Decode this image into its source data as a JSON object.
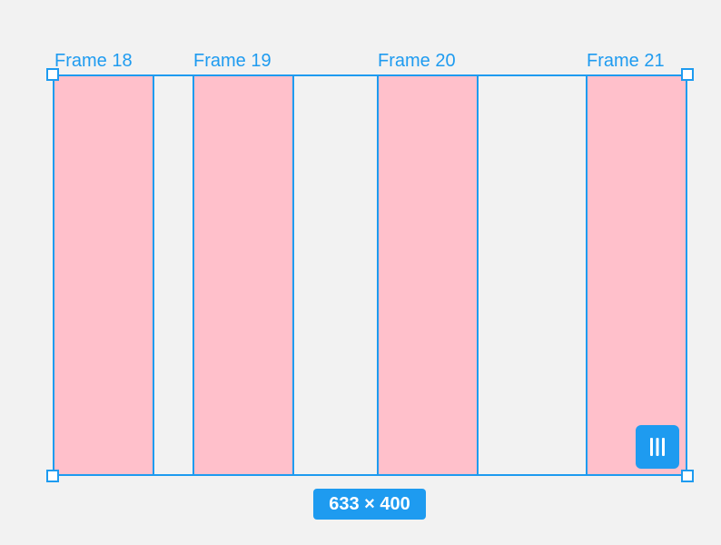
{
  "frames": [
    {
      "label": "Frame 18"
    },
    {
      "label": "Frame 19"
    },
    {
      "label": "Frame 20"
    },
    {
      "label": "Frame 21"
    }
  ],
  "selection": {
    "size_label": "633 × 400"
  },
  "colors": {
    "accent": "#1e9bf0",
    "frame_fill": "#ffc0cb",
    "canvas_bg": "#f2f2f2"
  },
  "icons": {
    "layout_toggle": "columns-layout-icon"
  }
}
